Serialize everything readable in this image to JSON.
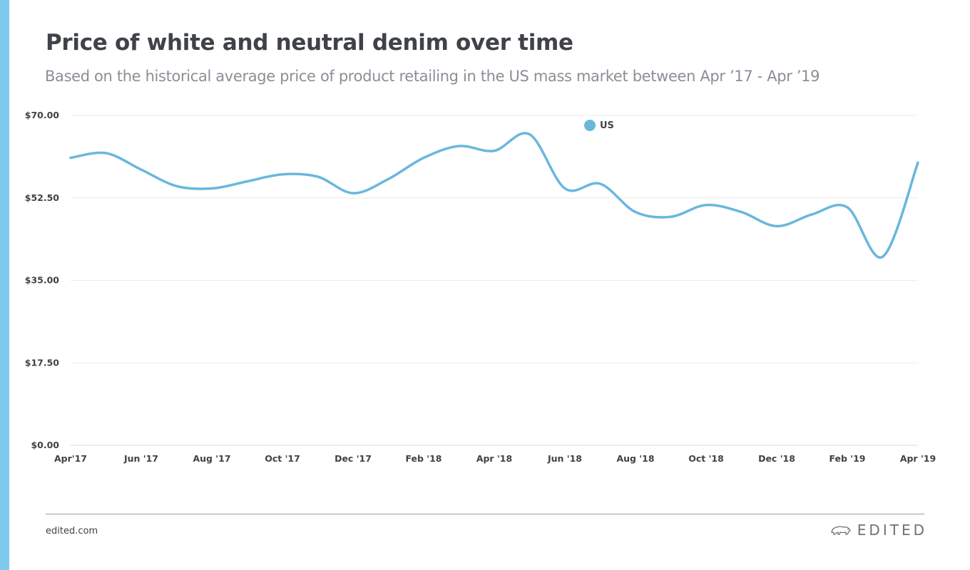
{
  "header": {
    "title": "Price of white and neutral denim over time",
    "subtitle": "Based on the historical average price of product retailing in the US mass market between Apr ’17 - Apr ’19"
  },
  "footer": {
    "url": "edited.com",
    "brand": "EDITED"
  },
  "colors": {
    "accent_bar": "#7ccbef",
    "series": "#6ab7dd",
    "gridline": "#ececec",
    "text": "#3f4248"
  },
  "chart_data": {
    "type": "line",
    "grid": true,
    "legend_position": "top-center",
    "x_ticks": [
      "Apr'17",
      "Jun '17",
      "Aug '17",
      "Oct '17",
      "Dec '17",
      "Feb '18",
      "Apr '18",
      "Jun '18",
      "Aug '18",
      "Oct '18",
      "Dec '18",
      "Feb '19",
      "Apr '19"
    ],
    "y_ticks": [
      "$0.00",
      "$17.50",
      "$35.00",
      "$52.50",
      "$70.00"
    ],
    "ylim": [
      0,
      70
    ],
    "xlim": [
      "2017-04",
      "2019-04"
    ],
    "series": [
      {
        "name": "US",
        "color": "#6ab7dd",
        "x": [
          "2017-04",
          "2017-05",
          "2017-06",
          "2017-07",
          "2017-08",
          "2017-09",
          "2017-10",
          "2017-11",
          "2017-12",
          "2018-01",
          "2018-02",
          "2018-03",
          "2018-04",
          "2018-05",
          "2018-06",
          "2018-07",
          "2018-08",
          "2018-09",
          "2018-10",
          "2018-11",
          "2018-12",
          "2019-01",
          "2019-02",
          "2019-03",
          "2019-04"
        ],
        "values": [
          61.0,
          62.0,
          58.5,
          55.0,
          54.5,
          56.0,
          57.5,
          57.0,
          53.5,
          56.5,
          61.0,
          63.5,
          62.5,
          66.0,
          54.5,
          55.5,
          49.5,
          48.5,
          51.0,
          49.5,
          46.5,
          49.0,
          50.5,
          40.0,
          60.0
        ]
      }
    ]
  }
}
